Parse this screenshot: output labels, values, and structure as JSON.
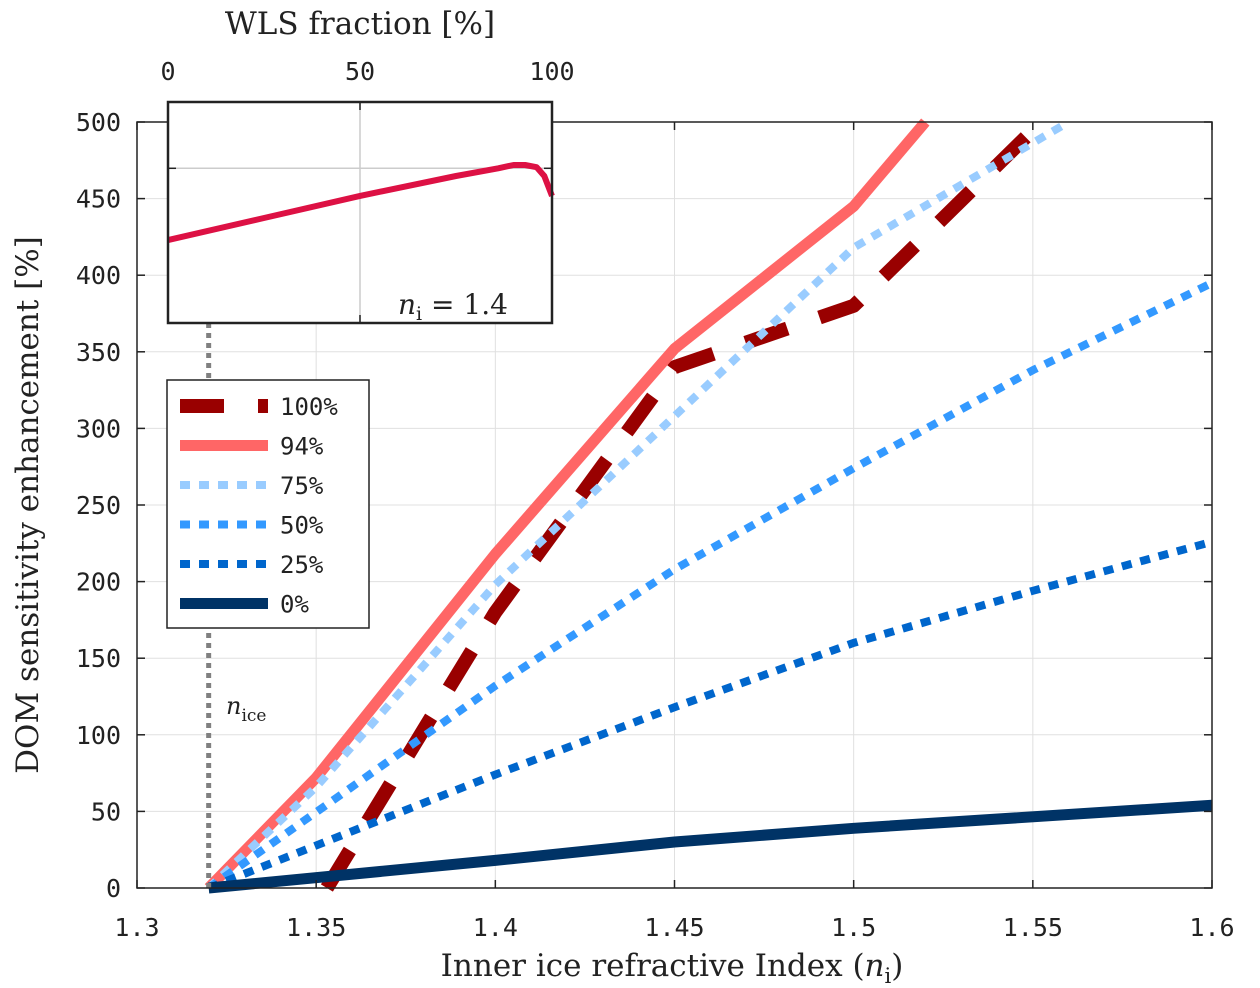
{
  "chart_data": [
    {
      "type": "line",
      "xlabel": "Inner ice refractive Index (",
      "xlabel_var": "n",
      "xlabel_sub": "i",
      "xlabel_close": ")",
      "ylabel": "DOM sensitivity enhancement [%]",
      "xlim": [
        1.3,
        1.6
      ],
      "ylim": [
        0,
        500
      ],
      "xticks": [
        "1.3",
        "1.35",
        "1.4",
        "1.45",
        "1.5",
        "1.55",
        "1.6"
      ],
      "yticks": [
        "0",
        "50",
        "100",
        "150",
        "200",
        "250",
        "300",
        "350",
        "400",
        "450",
        "500"
      ],
      "grid": true,
      "legend_position": "upper-left",
      "vline": {
        "x": 1.32,
        "label_var": "n",
        "label_sub": "ice",
        "color": "#808080"
      },
      "series": [
        {
          "name": "100%",
          "color": "#990000",
          "style": "dashed",
          "points": [
            [
              1.353,
              0
            ],
            [
              1.4,
              180
            ],
            [
              1.45,
              340
            ],
            [
              1.5,
              380
            ],
            [
              1.548,
              490
            ]
          ]
        },
        {
          "name": "94%",
          "color": "#ff6666",
          "style": "solid",
          "points": [
            [
              1.32,
              0
            ],
            [
              1.35,
              72
            ],
            [
              1.4,
              218
            ],
            [
              1.45,
              352
            ],
            [
              1.5,
              445
            ],
            [
              1.52,
              500
            ]
          ]
        },
        {
          "name": "75%",
          "color": "#99ccff",
          "style": "dotted",
          "points": [
            [
              1.32,
              0
            ],
            [
              1.35,
              66
            ],
            [
              1.4,
              198
            ],
            [
              1.45,
              308
            ],
            [
              1.5,
              418
            ],
            [
              1.56,
              500
            ]
          ]
        },
        {
          "name": "50%",
          "color": "#3399ff",
          "style": "dotted",
          "points": [
            [
              1.32,
              0
            ],
            [
              1.4,
              132
            ],
            [
              1.45,
              208
            ],
            [
              1.5,
              274
            ],
            [
              1.55,
              338
            ],
            [
              1.6,
              395
            ]
          ]
        },
        {
          "name": "25%",
          "color": "#0066cc",
          "style": "dotted",
          "points": [
            [
              1.32,
              0
            ],
            [
              1.4,
              74
            ],
            [
              1.45,
              118
            ],
            [
              1.5,
              160
            ],
            [
              1.55,
              194
            ],
            [
              1.6,
              226
            ]
          ]
        },
        {
          "name": "0%",
          "color": "#003366",
          "style": "solid",
          "points": [
            [
              1.32,
              0
            ],
            [
              1.4,
              18
            ],
            [
              1.45,
              30
            ],
            [
              1.5,
              39
            ],
            [
              1.6,
              54
            ]
          ]
        }
      ]
    },
    {
      "type": "line",
      "title": "WLS fraction [%]",
      "xlim": [
        0,
        100
      ],
      "ylim": [
        300,
        500
      ],
      "xticks": [
        "0",
        "50",
        "100"
      ],
      "grid": true,
      "annotation_var": "n",
      "annotation_sub": "i",
      "annotation_value": " = 1.4",
      "series": [
        {
          "color": "#dd1144",
          "x": [
            0,
            25,
            50,
            75,
            86,
            90,
            93,
            96,
            98,
            100
          ],
          "y": [
            375,
            395,
            415,
            433,
            440,
            443,
            443,
            441,
            433,
            415
          ]
        }
      ]
    }
  ]
}
